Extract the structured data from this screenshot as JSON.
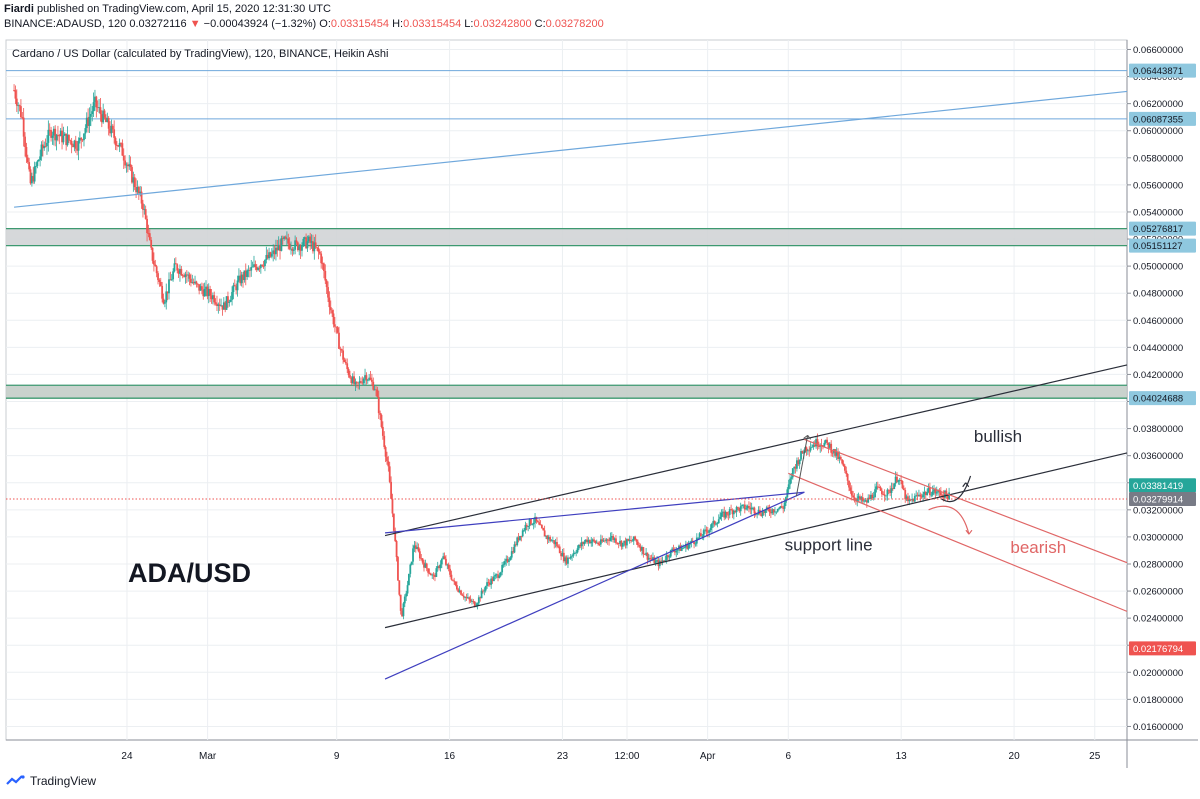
{
  "header": {
    "publisher": "Fiardi",
    "published_text": "published on TradingView.com, April 15, 2020 12:31:30 UTC",
    "symbol": "BINANCE:ADAUSD, 120",
    "last": "0.03272116",
    "change_arrow": "▼",
    "change": "−0.00043924 (−1.32%)",
    "o_label": "O:",
    "o_value": "0.03315454",
    "h_label": "H:",
    "h_value": "0.03315454",
    "l_label": "L:",
    "l_value": "0.03242800",
    "c_label": "C:",
    "c_value": "0.03278200"
  },
  "chart_data": {
    "type": "candlestick",
    "title": "Cardano / US Dollar (calculated by TradingView), 120, BINANCE, Heikin Ashi",
    "watermark": "ADA/USD",
    "x_ticks": [
      {
        "label": "24",
        "day": 24
      },
      {
        "label": "Mar",
        "day": 29
      },
      {
        "label": "9",
        "day": 37
      },
      {
        "label": "16",
        "day": 44
      },
      {
        "label": "23",
        "day": 51
      },
      {
        "label": "12:00",
        "day": 55
      },
      {
        "label": "Apr",
        "day": 60
      },
      {
        "label": "6",
        "day": 65
      },
      {
        "label": "13",
        "day": 72
      },
      {
        "label": "20",
        "day": 79
      },
      {
        "label": "25",
        "day": 84
      }
    ],
    "y_ticks": [
      "0.06600000",
      "0.06400000",
      "0.06200000",
      "0.06000000",
      "0.05800000",
      "0.05600000",
      "0.05400000",
      "0.05200000",
      "0.05000000",
      "0.04800000",
      "0.04600000",
      "0.04400000",
      "0.04200000",
      "0.04000000",
      "0.03800000",
      "0.03600000",
      "0.03400000",
      "0.03200000",
      "0.03000000",
      "0.02800000",
      "0.02600000",
      "0.02400000",
      "0.02200000",
      "0.02000000",
      "0.01800000",
      "0.01600000"
    ],
    "ylim": [
      0.015,
      0.0667
    ],
    "grid": true,
    "price_markers": [
      {
        "label": "0.06443871",
        "value": 0.06443871,
        "color": "#8fc8df"
      },
      {
        "label": "0.06087355",
        "value": 0.06087355,
        "color": "#8fc8df"
      },
      {
        "label": "0.05276817",
        "value": 0.05276817,
        "color": "#8fc8df"
      },
      {
        "label": "0.05151127",
        "value": 0.05151127,
        "color": "#8fc8df"
      },
      {
        "label": "0.04024688",
        "value": 0.04024688,
        "color": "#8fc8df"
      },
      {
        "label": "0.03381419",
        "value": 0.03381419,
        "color": "#26a69a"
      },
      {
        "label": "0.03279914",
        "value": 0.03279914,
        "color": "#787b86"
      },
      {
        "label": "0.02176794",
        "value": 0.02176794,
        "color": "#ef5350"
      }
    ],
    "zones": [
      {
        "from": 0.05151127,
        "to": 0.05276817,
        "fill": "#d1d4d6",
        "border": "#3d9970"
      },
      {
        "from": 0.04024688,
        "to": 0.0412,
        "fill": "#c3cdc8",
        "border": "#3d9970"
      }
    ],
    "horizontal_lines": [
      {
        "value": 0.06443871,
        "color": "#6fa8dc"
      },
      {
        "value": 0.06087355,
        "color": "#6fa8dc"
      }
    ],
    "trend_lines": [
      {
        "name": "upper-blue-trend",
        "d1": 17,
        "p1": 0.05435,
        "d2": 86,
        "p2": 0.0629,
        "color": "#6fa8dc"
      },
      {
        "name": "channel-upper",
        "d1": 40,
        "p1": 0.0301,
        "d2": 86,
        "p2": 0.0427,
        "color": "#2a2e39"
      },
      {
        "name": "channel-lower",
        "d1": 40,
        "p1": 0.0233,
        "d2": 86,
        "p2": 0.0362,
        "color": "#2a2e39"
      },
      {
        "name": "wedge-upper",
        "d1": 40,
        "p1": 0.0303,
        "d2": 66,
        "p2": 0.0333,
        "color": "#3f3fbf"
      },
      {
        "name": "wedge-lower",
        "d1": 40,
        "p1": 0.0195,
        "d2": 66,
        "p2": 0.0333,
        "color": "#3f3fbf"
      },
      {
        "name": "bear-channel-upper",
        "d1": 66,
        "p1": 0.0372,
        "d2": 86,
        "p2": 0.0281,
        "color": "#e06666"
      },
      {
        "name": "bear-channel-lower",
        "d1": 65,
        "p1": 0.0347,
        "d2": 86,
        "p2": 0.0245,
        "color": "#e06666"
      }
    ],
    "annotations": [
      {
        "text": "bullish",
        "day": 78,
        "price": 0.037,
        "color": "#2a2e39"
      },
      {
        "text": "support line",
        "day": 67.5,
        "price": 0.029,
        "color": "#2a2e39"
      },
      {
        "text": "bearish",
        "day": 80.5,
        "price": 0.0288,
        "color": "#e06666"
      }
    ],
    "day_range": [
      16.5,
      86
    ],
    "path_points": [
      [
        17,
        0.063
      ],
      [
        17.5,
        0.061
      ],
      [
        18,
        0.056
      ],
      [
        18.7,
        0.0585
      ],
      [
        19.3,
        0.06
      ],
      [
        20,
        0.0595
      ],
      [
        21,
        0.059
      ],
      [
        22,
        0.062
      ],
      [
        22.5,
        0.061
      ],
      [
        23,
        0.06
      ],
      [
        23.7,
        0.0585
      ],
      [
        24.5,
        0.056
      ],
      [
        25,
        0.0545
      ],
      [
        25.5,
        0.051
      ],
      [
        26.3,
        0.0475
      ],
      [
        27,
        0.05
      ],
      [
        27.6,
        0.0495
      ],
      [
        28.3,
        0.0485
      ],
      [
        29.3,
        0.0478
      ],
      [
        30,
        0.047
      ],
      [
        31,
        0.049
      ],
      [
        32,
        0.05
      ],
      [
        33,
        0.0508
      ],
      [
        33.7,
        0.0518
      ],
      [
        34.5,
        0.0515
      ],
      [
        35.3,
        0.0518
      ],
      [
        36,
        0.0508
      ],
      [
        36.6,
        0.047
      ],
      [
        37.2,
        0.044
      ],
      [
        37.6,
        0.0425
      ],
      [
        38.2,
        0.041
      ],
      [
        38.8,
        0.042
      ],
      [
        39.4,
        0.041
      ],
      [
        39.8,
        0.038
      ],
      [
        40.2,
        0.035
      ],
      [
        40.6,
        0.03
      ],
      [
        41,
        0.024
      ],
      [
        41.4,
        0.0265
      ],
      [
        41.8,
        0.0295
      ],
      [
        42.4,
        0.028
      ],
      [
        43,
        0.027
      ],
      [
        43.6,
        0.0285
      ],
      [
        44.3,
        0.0265
      ],
      [
        45,
        0.0255
      ],
      [
        45.6,
        0.025
      ],
      [
        46.3,
        0.0265
      ],
      [
        47,
        0.0272
      ],
      [
        47.7,
        0.0285
      ],
      [
        48.3,
        0.03
      ],
      [
        48.8,
        0.031
      ],
      [
        49.3,
        0.0312
      ],
      [
        50,
        0.03
      ],
      [
        50.6,
        0.0295
      ],
      [
        51.2,
        0.0282
      ],
      [
        51.8,
        0.029
      ],
      [
        52.5,
        0.0298
      ],
      [
        53.3,
        0.0295
      ],
      [
        54,
        0.03
      ],
      [
        54.7,
        0.0295
      ],
      [
        55.5,
        0.0298
      ],
      [
        56.3,
        0.0285
      ],
      [
        57,
        0.028
      ],
      [
        57.8,
        0.029
      ],
      [
        58.5,
        0.0292
      ],
      [
        59.3,
        0.0298
      ],
      [
        60,
        0.0305
      ],
      [
        60.8,
        0.0315
      ],
      [
        61.6,
        0.032
      ],
      [
        62.5,
        0.0322
      ],
      [
        63.3,
        0.0318
      ],
      [
        64,
        0.032
      ],
      [
        64.7,
        0.0322
      ],
      [
        65.3,
        0.035
      ],
      [
        66,
        0.0365
      ],
      [
        66.8,
        0.037
      ],
      [
        67.5,
        0.0368
      ],
      [
        68.3,
        0.0355
      ],
      [
        69,
        0.033
      ],
      [
        69.8,
        0.0325
      ],
      [
        70.5,
        0.0335
      ],
      [
        71.2,
        0.0332
      ],
      [
        71.8,
        0.0345
      ],
      [
        72.4,
        0.0325
      ],
      [
        73,
        0.033
      ],
      [
        73.8,
        0.0334
      ],
      [
        74.5,
        0.0332
      ],
      [
        75,
        0.033
      ]
    ],
    "dotted_price": 0.03279914
  }
}
